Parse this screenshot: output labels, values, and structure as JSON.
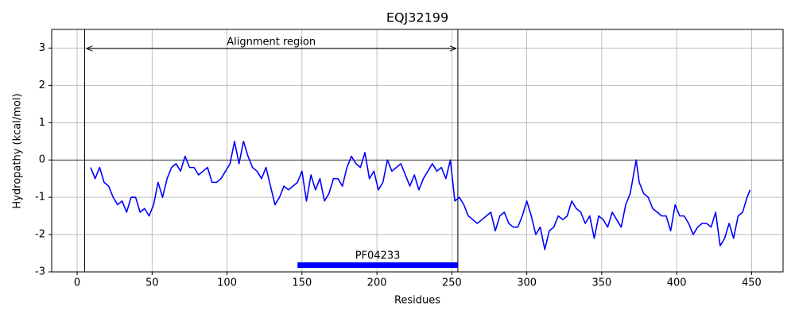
{
  "chart_data": {
    "type": "line",
    "title": "EQJ32199",
    "x_label": "Residues",
    "y_label": "Hydropathy (kcal/mol)",
    "color": "#0000ff",
    "grid": true,
    "hline": 0,
    "xlim": [
      -17,
      471
    ],
    "ylim": [
      -3,
      3.5
    ],
    "xticks": [
      0,
      50,
      100,
      150,
      200,
      250,
      300,
      350,
      400,
      450
    ],
    "yticks": [
      -3,
      -2,
      -1,
      0,
      1,
      2,
      3
    ],
    "region": {
      "label": "Alignment region",
      "start": 5,
      "end": 254
    },
    "domains": [
      {
        "name": "PF04233",
        "start": 147,
        "end": 254,
        "color": "#0000ff"
      }
    ],
    "x": [
      9,
      12,
      15,
      18,
      21,
      24,
      27,
      30,
      33,
      36,
      39,
      42,
      45,
      48,
      51,
      54,
      57,
      60,
      63,
      66,
      69,
      72,
      75,
      78,
      81,
      84,
      87,
      90,
      93,
      96,
      99,
      102,
      105,
      108,
      111,
      114,
      117,
      120,
      123,
      126,
      129,
      132,
      135,
      138,
      141,
      144,
      147,
      150,
      153,
      156,
      159,
      162,
      165,
      168,
      171,
      174,
      177,
      180,
      183,
      186,
      189,
      192,
      195,
      198,
      201,
      204,
      207,
      210,
      213,
      216,
      219,
      222,
      225,
      228,
      231,
      234,
      237,
      240,
      243,
      246,
      249,
      252,
      255,
      258,
      261,
      264,
      267,
      270,
      273,
      276,
      279,
      282,
      285,
      288,
      291,
      294,
      297,
      300,
      303,
      306,
      309,
      312,
      315,
      318,
      321,
      324,
      327,
      330,
      333,
      336,
      339,
      342,
      345,
      348,
      351,
      354,
      357,
      360,
      363,
      366,
      369,
      373,
      375,
      378,
      381,
      384,
      387,
      390,
      393,
      396,
      399,
      402,
      405,
      408,
      411,
      414,
      417,
      420,
      423,
      426,
      429,
      432,
      435,
      438,
      441,
      444,
      447,
      449
    ],
    "values": [
      -0.2,
      -0.5,
      -0.2,
      -0.6,
      -0.7,
      -1.0,
      -1.2,
      -1.1,
      -1.4,
      -1.0,
      -1.0,
      -1.4,
      -1.3,
      -1.5,
      -1.2,
      -0.6,
      -1.0,
      -0.5,
      -0.2,
      -0.1,
      -0.3,
      0.1,
      -0.2,
      -0.2,
      -0.4,
      -0.3,
      -0.2,
      -0.6,
      -0.6,
      -0.5,
      -0.3,
      -0.1,
      0.5,
      -0.1,
      0.5,
      0.1,
      -0.2,
      -0.3,
      -0.5,
      -0.2,
      -0.7,
      -1.2,
      -1.0,
      -0.7,
      -0.8,
      -0.7,
      -0.6,
      -0.3,
      -1.1,
      -0.4,
      -0.8,
      -0.5,
      -1.1,
      -0.9,
      -0.5,
      -0.5,
      -0.7,
      -0.2,
      0.1,
      -0.1,
      -0.2,
      0.2,
      -0.5,
      -0.3,
      -0.8,
      -0.6,
      0.0,
      -0.3,
      -0.2,
      -0.1,
      -0.4,
      -0.7,
      -0.4,
      -0.8,
      -0.5,
      -0.3,
      -0.1,
      -0.3,
      -0.2,
      -0.5,
      0.0,
      -1.1,
      -1.0,
      -1.2,
      -1.5,
      -1.6,
      -1.7,
      -1.6,
      -1.5,
      -1.4,
      -1.9,
      -1.5,
      -1.4,
      -1.7,
      -1.8,
      -1.8,
      -1.5,
      -1.1,
      -1.5,
      -2.0,
      -1.8,
      -2.4,
      -1.9,
      -1.8,
      -1.5,
      -1.6,
      -1.5,
      -1.1,
      -1.3,
      -1.4,
      -1.7,
      -1.5,
      -2.1,
      -1.5,
      -1.6,
      -1.8,
      -1.4,
      -1.6,
      -1.8,
      -1.2,
      -0.9,
      0.0,
      -0.6,
      -0.9,
      -1.0,
      -1.3,
      -1.4,
      -1.5,
      -1.5,
      -1.9,
      -1.2,
      -1.5,
      -1.5,
      -1.7,
      -2.0,
      -1.8,
      -1.7,
      -1.7,
      -1.8,
      -1.4,
      -2.3,
      -2.1,
      -1.7,
      -2.1,
      -1.5,
      -1.4,
      -1.0,
      -0.8
    ]
  }
}
